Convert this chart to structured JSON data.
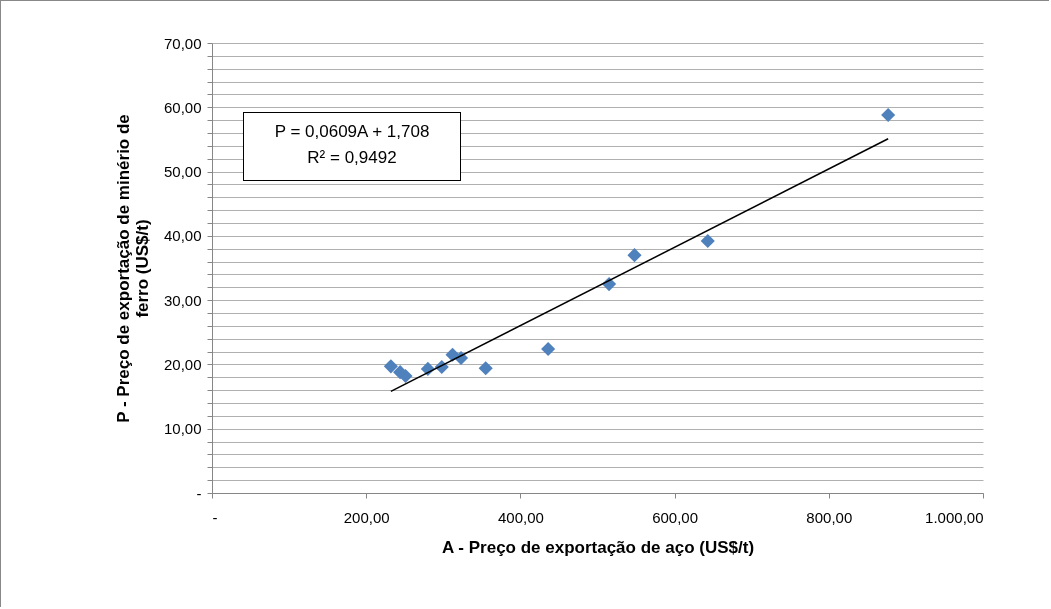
{
  "chart_data": {
    "type": "scatter",
    "xlabel": "A - Preço de exportação de aço (US$/t)",
    "ylabel": "P - Preço de exportação de minério de ferro (US$/t)",
    "annotations": [
      "P = 0,0609A + 1,708",
      "R² = 0,9492"
    ],
    "xlim": [
      0,
      1000
    ],
    "xticks": [
      {
        "value": 0,
        "label": "-"
      },
      {
        "value": 200,
        "label": "200,00"
      },
      {
        "value": 400,
        "label": "400,00"
      },
      {
        "value": 600,
        "label": "600,00"
      },
      {
        "value": 800,
        "label": "800,00"
      },
      {
        "value": 1000,
        "label": "1.000,00"
      }
    ],
    "ylim": [
      0,
      70
    ],
    "yticks": [
      {
        "value": 0,
        "label": "-"
      },
      {
        "value": 2,
        "label": null
      },
      {
        "value": 4,
        "label": null
      },
      {
        "value": 6,
        "label": null
      },
      {
        "value": 8,
        "label": null
      },
      {
        "value": 10,
        "label": "10,00"
      },
      {
        "value": 12,
        "label": null
      },
      {
        "value": 14,
        "label": null
      },
      {
        "value": 16,
        "label": null
      },
      {
        "value": 18,
        "label": null
      },
      {
        "value": 20,
        "label": "20,00"
      },
      {
        "value": 22,
        "label": null
      },
      {
        "value": 24,
        "label": null
      },
      {
        "value": 26,
        "label": null
      },
      {
        "value": 28,
        "label": null
      },
      {
        "value": 30,
        "label": "30,00"
      },
      {
        "value": 32,
        "label": null
      },
      {
        "value": 34,
        "label": null
      },
      {
        "value": 36,
        "label": null
      },
      {
        "value": 38,
        "label": null
      },
      {
        "value": 40,
        "label": "40,00"
      },
      {
        "value": 42,
        "label": null
      },
      {
        "value": 44,
        "label": null
      },
      {
        "value": 46,
        "label": null
      },
      {
        "value": 48,
        "label": null
      },
      {
        "value": 50,
        "label": "50,00"
      },
      {
        "value": 52,
        "label": null
      },
      {
        "value": 54,
        "label": null
      },
      {
        "value": 56,
        "label": null
      },
      {
        "value": 58,
        "label": null
      },
      {
        "value": 60,
        "label": "60,00"
      },
      {
        "value": 62,
        "label": null
      },
      {
        "value": 64,
        "label": null
      },
      {
        "value": 66,
        "label": null
      },
      {
        "value": 68,
        "label": null
      },
      {
        "value": 70,
        "label": "70,00"
      }
    ],
    "grid": "y",
    "series": [
      {
        "marker": "diamond",
        "color": "#4f81bd",
        "x": [
          232,
          244,
          251,
          280,
          298,
          312,
          323,
          355,
          436,
          515,
          548,
          643,
          877
        ],
        "values": [
          19.7,
          18.8,
          18.2,
          19.3,
          19.6,
          21.5,
          21.0,
          19.4,
          22.4,
          32.5,
          37.0,
          39.2,
          58.8
        ]
      },
      {
        "type": "line",
        "color": "#000000",
        "x": [
          232,
          877
        ],
        "values": [
          15.8,
          55.1
        ]
      }
    ]
  }
}
